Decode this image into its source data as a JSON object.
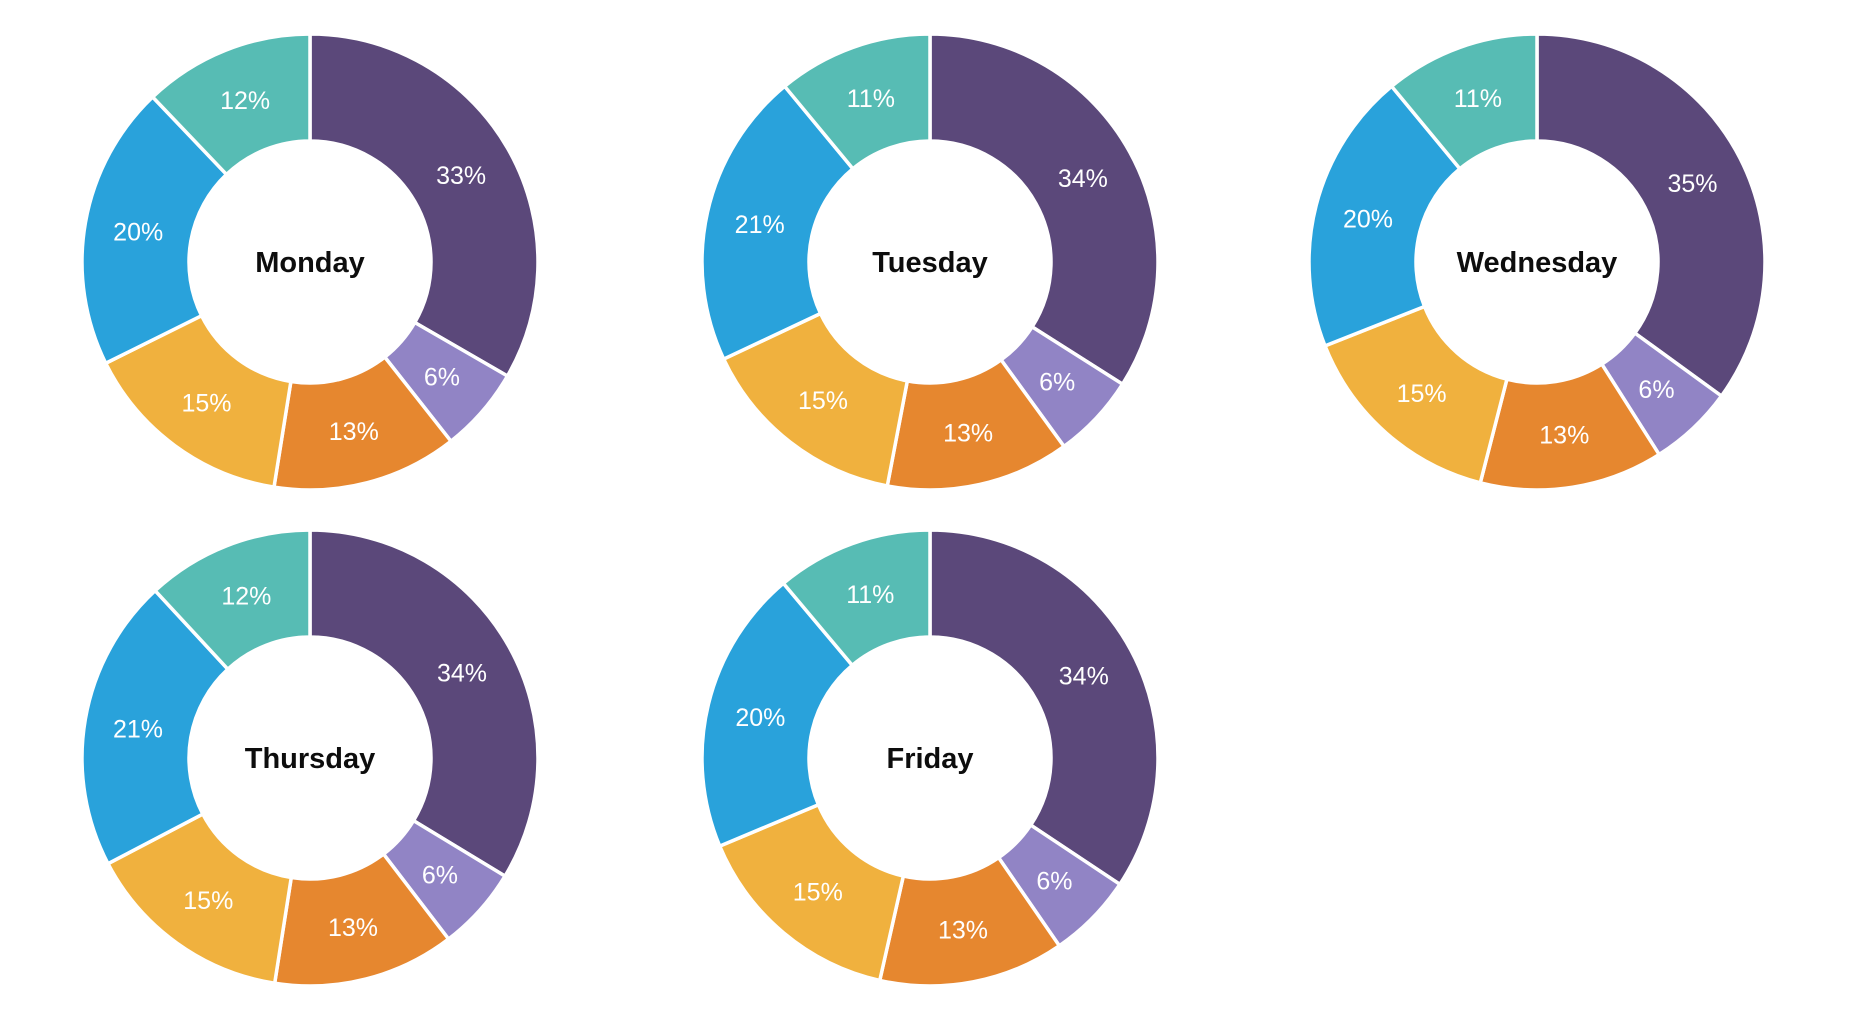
{
  "palette": {
    "dark-purple": "#5b487a",
    "light-purple": "#9184c5",
    "orange": "#e6872f",
    "amber": "#f0b13e",
    "blue": "#29a2db",
    "teal": "#57bcb4"
  },
  "percent_label_color": "#ffffff",
  "title_color": "#0d0d0d",
  "background_color": "#ffffff",
  "chart_data": [
    {
      "type": "pie",
      "subtype": "donut",
      "title": "Monday",
      "start_angle_deg": 0,
      "direction": "clockwise",
      "slice_order_colors": [
        "dark-purple",
        "light-purple",
        "orange",
        "amber",
        "blue",
        "teal"
      ],
      "values": [
        33,
        6,
        13,
        15,
        20,
        12
      ],
      "labels": [
        "33%",
        "6%",
        "13%",
        "15%",
        "20%",
        "12%"
      ]
    },
    {
      "type": "pie",
      "subtype": "donut",
      "title": "Tuesday",
      "start_angle_deg": 0,
      "direction": "clockwise",
      "slice_order_colors": [
        "dark-purple",
        "light-purple",
        "orange",
        "amber",
        "blue",
        "teal"
      ],
      "values": [
        34,
        6,
        13,
        15,
        21,
        11
      ],
      "labels": [
        "34%",
        "6%",
        "13%",
        "15%",
        "21%",
        "11%"
      ]
    },
    {
      "type": "pie",
      "subtype": "donut",
      "title": "Wednesday",
      "start_angle_deg": 0,
      "direction": "clockwise",
      "slice_order_colors": [
        "dark-purple",
        "light-purple",
        "orange",
        "amber",
        "blue",
        "teal"
      ],
      "values": [
        35,
        6,
        13,
        15,
        20,
        11
      ],
      "labels": [
        "35%",
        "6%",
        "13%",
        "15%",
        "20%",
        "11%"
      ]
    },
    {
      "type": "pie",
      "subtype": "donut",
      "title": "Thursday",
      "start_angle_deg": 0,
      "direction": "clockwise",
      "slice_order_colors": [
        "dark-purple",
        "light-purple",
        "orange",
        "amber",
        "blue",
        "teal"
      ],
      "values": [
        34,
        6,
        13,
        15,
        21,
        12
      ],
      "labels": [
        "34%",
        "6%",
        "13%",
        "15%",
        "21%",
        "12%"
      ]
    },
    {
      "type": "pie",
      "subtype": "donut",
      "title": "Friday",
      "start_angle_deg": 0,
      "direction": "clockwise",
      "slice_order_colors": [
        "dark-purple",
        "light-purple",
        "orange",
        "amber",
        "blue",
        "teal"
      ],
      "values": [
        34,
        6,
        13,
        15,
        20,
        11
      ],
      "labels": [
        "34%",
        "6%",
        "13%",
        "15%",
        "20%",
        "11%"
      ]
    }
  ]
}
